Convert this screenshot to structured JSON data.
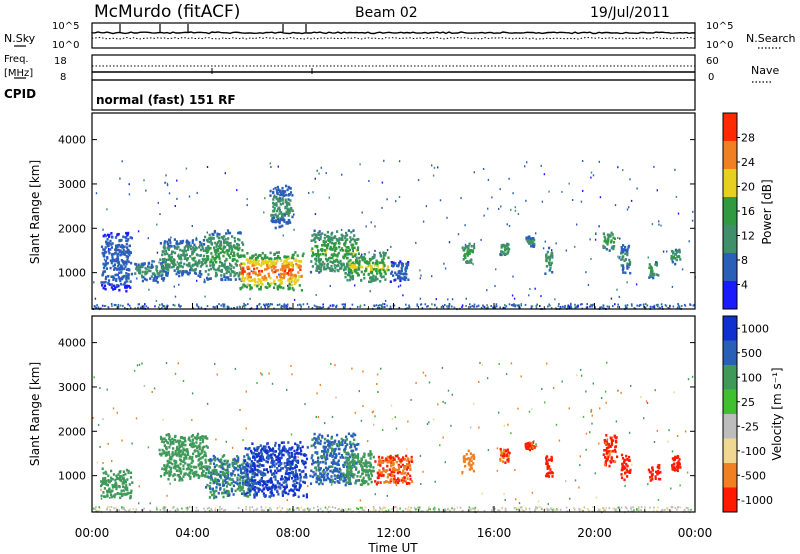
{
  "header": {
    "station": "McMurdo (fitACF)",
    "beam": "Beam 02",
    "date": "19/Jul/2011"
  },
  "top_panels": {
    "nsky_label": "N.Sky",
    "nsky_ticks": [
      "10^5",
      "10^0"
    ],
    "nsearch_label": "N.Search",
    "nsearch_ticks": [
      "10^5",
      "10^0"
    ],
    "freq_label": "Freq.",
    "freq_unit": "[MHz]",
    "freq_ticks": [
      "18",
      "8"
    ],
    "nave_label": "Nave",
    "nave_ticks": [
      "60",
      "0"
    ],
    "cpid_label": "CPID",
    "cpid_value": "normal (fast) 151 RF"
  },
  "chart_data": [
    {
      "type": "heatmap",
      "name": "power",
      "ylabel": "Slant Range [km]",
      "yticks": [
        "4000",
        "3000",
        "2000",
        "1000"
      ],
      "ylim": [
        180,
        4600
      ],
      "xticks": [
        "00:00",
        "04:00",
        "08:00",
        "12:00",
        "16:00",
        "20:00",
        "00:00"
      ],
      "xlim_hours": [
        0,
        24
      ],
      "colorbar_label": "Power [dB]",
      "colorbar_ticks": [
        "28",
        "24",
        "20",
        "16",
        "12",
        "8",
        "4"
      ],
      "colorbar_range": [
        0,
        32
      ],
      "colors": [
        "#1a1aff",
        "#2a5fb8",
        "#3f8f6a",
        "#2f9a3f",
        "#e8d020",
        "#f08020",
        "#ff2a00"
      ],
      "regions": [
        {
          "t0": 0.3,
          "t1": 1.6,
          "r0": 600,
          "r1": 2000,
          "power": 8
        },
        {
          "t0": 1.6,
          "t1": 3.0,
          "r0": 800,
          "r1": 1300,
          "power": 12
        },
        {
          "t0": 2.6,
          "t1": 4.6,
          "r0": 900,
          "r1": 1800,
          "power": 14
        },
        {
          "t0": 4.4,
          "t1": 6.0,
          "r0": 800,
          "r1": 2000,
          "power": 16
        },
        {
          "t0": 5.8,
          "t1": 8.4,
          "r0": 600,
          "r1": 1500,
          "power": 28
        },
        {
          "t0": 7.0,
          "t1": 8.0,
          "r0": 2000,
          "r1": 3000,
          "power": 12
        },
        {
          "t0": 8.6,
          "t1": 10.6,
          "r0": 1000,
          "r1": 2000,
          "power": 18
        },
        {
          "t0": 10.0,
          "t1": 11.8,
          "r0": 800,
          "r1": 1500,
          "power": 20
        },
        {
          "t0": 11.8,
          "t1": 12.6,
          "r0": 800,
          "r1": 1300,
          "power": 8
        },
        {
          "t0": 14.7,
          "t1": 15.2,
          "r0": 1200,
          "r1": 1700,
          "power": 18
        },
        {
          "t0": 16.2,
          "t1": 16.6,
          "r0": 1400,
          "r1": 1700,
          "power": 16
        },
        {
          "t0": 17.2,
          "t1": 17.6,
          "r0": 1600,
          "r1": 1850,
          "power": 12
        },
        {
          "t0": 18.0,
          "t1": 18.3,
          "r0": 1000,
          "r1": 1600,
          "power": 14
        },
        {
          "t0": 20.3,
          "t1": 20.8,
          "r0": 1500,
          "r1": 2000,
          "power": 16
        },
        {
          "t0": 21.0,
          "t1": 21.4,
          "r0": 1000,
          "r1": 1700,
          "power": 12
        },
        {
          "t0": 22.1,
          "t1": 22.5,
          "r0": 900,
          "r1": 1300,
          "power": 16
        },
        {
          "t0": 23.0,
          "t1": 23.4,
          "r0": 1200,
          "r1": 1600,
          "power": 14
        }
      ]
    },
    {
      "type": "heatmap",
      "name": "velocity",
      "ylabel": "Slant Range [km]",
      "yticks": [
        "4000",
        "3000",
        "2000",
        "1000"
      ],
      "ylim": [
        180,
        4600
      ],
      "xticks": [
        "00:00",
        "04:00",
        "08:00",
        "12:00",
        "16:00",
        "20:00",
        "00:00"
      ],
      "xlim_hours": [
        0,
        24
      ],
      "xlabel": "Time UT",
      "colorbar_label": "Velocity [m s⁻¹]",
      "colorbar_ticks": [
        "1000",
        "500",
        "100",
        "25",
        "-25",
        "-100",
        "-500",
        "-1000"
      ],
      "colors": [
        "#1030d0",
        "#2a5fb8",
        "#3f9a5a",
        "#40c030",
        "#bdbdbd",
        "#f0d890",
        "#f08020",
        "#ff1a00"
      ],
      "regions": [
        {
          "t0": 0.3,
          "t1": 1.6,
          "r0": 500,
          "r1": 1200,
          "velocity": 200
        },
        {
          "t0": 2.6,
          "t1": 4.6,
          "r0": 900,
          "r1": 2000,
          "velocity": 150
        },
        {
          "t0": 4.4,
          "t1": 6.5,
          "r0": 500,
          "r1": 1500,
          "velocity": 300
        },
        {
          "t0": 6.0,
          "t1": 8.6,
          "r0": 500,
          "r1": 1800,
          "velocity": 800
        },
        {
          "t0": 8.6,
          "t1": 10.6,
          "r0": 800,
          "r1": 2000,
          "velocity": 400
        },
        {
          "t0": 10.0,
          "t1": 11.2,
          "r0": 800,
          "r1": 1600,
          "velocity": 150
        },
        {
          "t0": 11.2,
          "t1": 12.8,
          "r0": 800,
          "r1": 1500,
          "velocity": -300
        },
        {
          "t0": 14.7,
          "t1": 15.2,
          "r0": 1100,
          "r1": 1600,
          "velocity": -200
        },
        {
          "t0": 16.2,
          "t1": 16.6,
          "r0": 1300,
          "r1": 1700,
          "velocity": -300
        },
        {
          "t0": 17.2,
          "t1": 17.6,
          "r0": 1600,
          "r1": 1800,
          "velocity": -400
        },
        {
          "t0": 18.0,
          "t1": 18.3,
          "r0": 1000,
          "r1": 1500,
          "velocity": -600
        },
        {
          "t0": 20.3,
          "t1": 20.9,
          "r0": 1200,
          "r1": 2000,
          "velocity": -400
        },
        {
          "t0": 21.0,
          "t1": 21.4,
          "r0": 900,
          "r1": 1500,
          "velocity": -500
        },
        {
          "t0": 22.1,
          "t1": 22.6,
          "r0": 900,
          "r1": 1300,
          "velocity": -600
        },
        {
          "t0": 23.0,
          "t1": 23.4,
          "r0": 1100,
          "r1": 1500,
          "velocity": -500
        }
      ]
    }
  ]
}
